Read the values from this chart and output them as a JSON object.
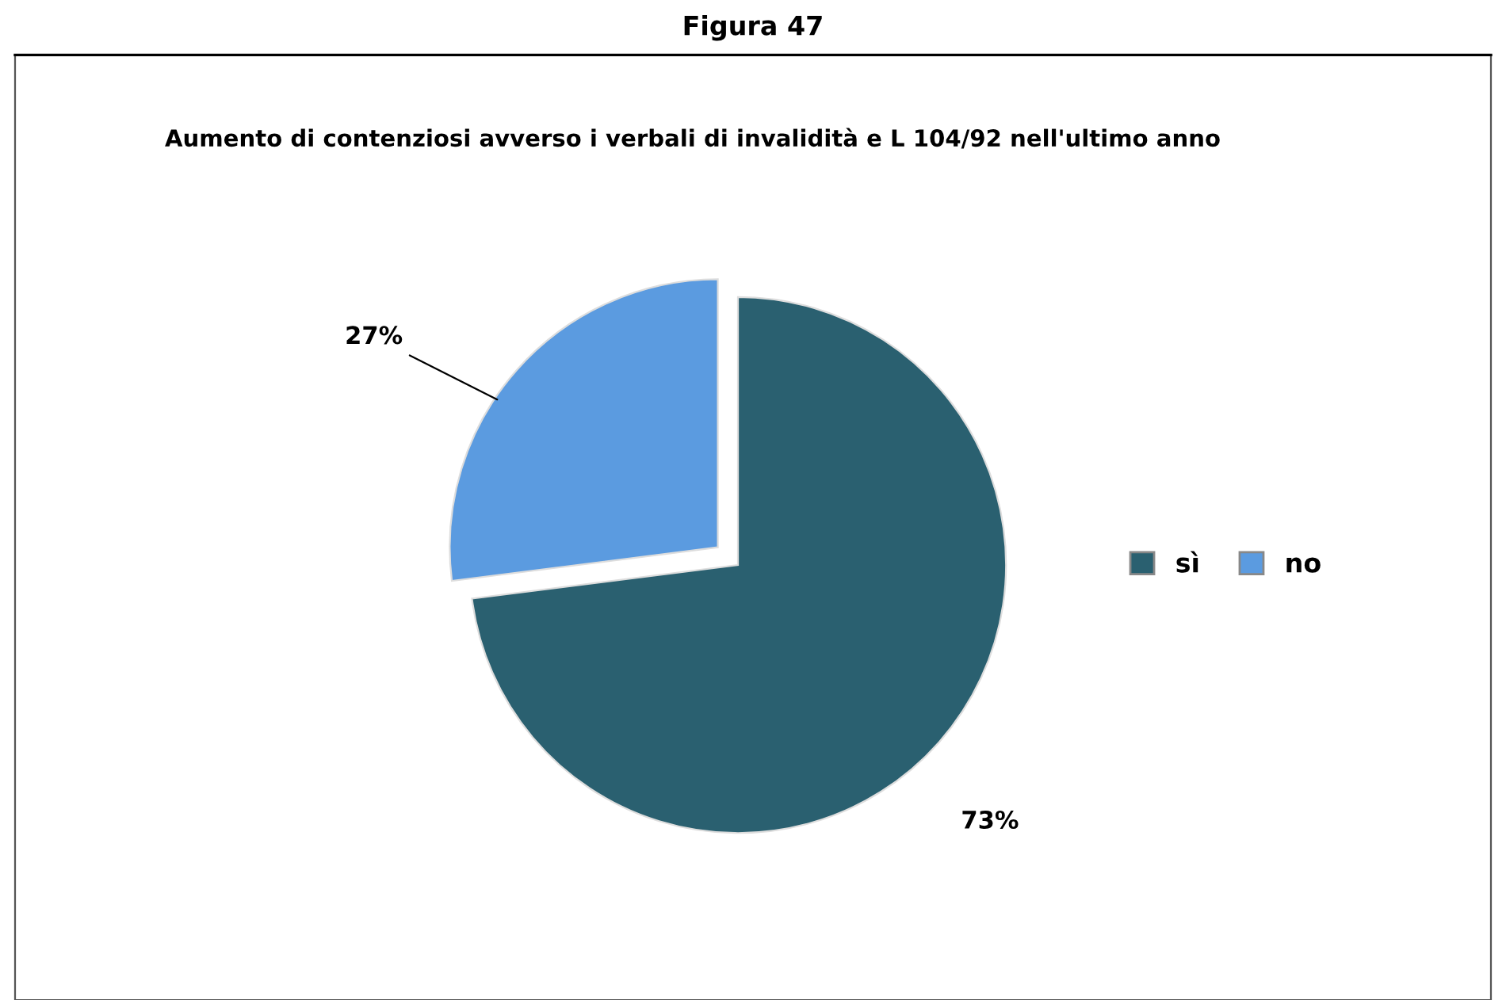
{
  "chart_data": {
    "type": "pie",
    "title": "Aumento di contenziosi avverso i verbali di invalidità e L 104/92 nell'ultimo anno",
    "annotations": [
      "Figura 47"
    ],
    "categories": [
      "sì",
      "no"
    ],
    "values": [
      73,
      27
    ],
    "colors": [
      "#2a6070",
      "#5b9be0"
    ],
    "value_labels": [
      "73%",
      "27%"
    ],
    "legend": "right"
  }
}
